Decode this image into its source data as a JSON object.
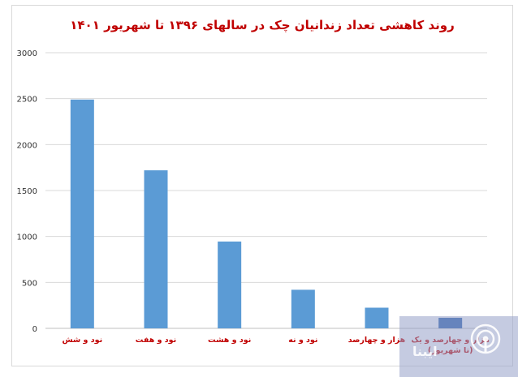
{
  "chart_data": {
    "type": "bar",
    "title": "روند کاهشی تعداد زندانیان چک در سالهای ۱۳۹۶ تا شهریور ۱۴۰۱",
    "categories": [
      "نود و شش",
      "نود و هفت",
      "نود و هشت",
      "نود و نه",
      "هزار و چهارصد",
      "هزار و چهارصد و یک (تا شهریور)"
    ],
    "values": [
      2490,
      1720,
      945,
      420,
      225,
      115
    ],
    "ylim": [
      0,
      3000
    ],
    "yticks": [
      0,
      500,
      1000,
      1500,
      2000,
      2500,
      3000
    ],
    "grid": true,
    "legend": "none",
    "bar_colors": [
      "#5b9bd5",
      "#5b9bd5",
      "#5b9bd5",
      "#5b9bd5",
      "#5b9bd5",
      "#2e62b0"
    ],
    "title_color": "#c00000",
    "label_color": "#c00000"
  },
  "watermark": {
    "text": "ایبنا",
    "icon": "broadcast-icon"
  }
}
